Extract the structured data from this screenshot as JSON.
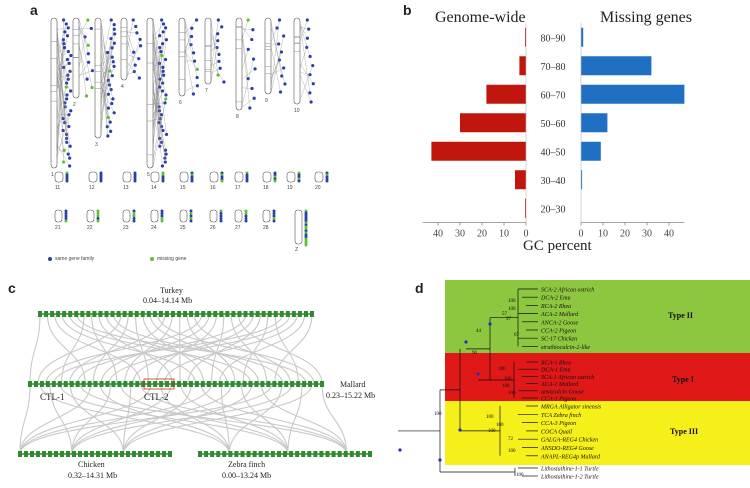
{
  "panel_a": {
    "label": "a",
    "chromosomes_top": [
      "1",
      "2",
      "3",
      "4",
      "5",
      "6",
      "7",
      "8",
      "9",
      "10"
    ],
    "chromosomes_mid": [
      "11",
      "12",
      "13",
      "14",
      "15",
      "16",
      "17",
      "18",
      "19",
      "20"
    ],
    "chromosomes_bot": [
      "21",
      "22",
      "23",
      "24",
      "25",
      "26",
      "27",
      "28",
      "Z"
    ],
    "legend_same": "same gene family",
    "legend_missing": "missing gene",
    "colors": {
      "same": "#2b3fa8",
      "missing": "#5cbf3a"
    }
  },
  "panel_b": {
    "label": "b",
    "left_title": "Genome-wide",
    "right_title": "Missing genes",
    "xlabel": "GC percent",
    "colors": {
      "genome": "#c0160e",
      "missing": "#1f6fc2"
    }
  },
  "chart_data": {
    "type": "bar",
    "categories": [
      "80–90",
      "70–80",
      "60–70",
      "50–60",
      "40–50",
      "30–40",
      "20–30"
    ],
    "series": [
      {
        "name": "Genome-wide",
        "values": [
          0.3,
          3,
          18,
          30,
          43,
          5,
          0.3
        ]
      },
      {
        "name": "Missing genes",
        "values": [
          1,
          32,
          47,
          12,
          9,
          0.5,
          0
        ]
      }
    ],
    "left_ticks": [
      "40",
      "30",
      "20",
      "10",
      "0"
    ],
    "right_ticks": [
      "0",
      "10",
      "20",
      "30",
      "40"
    ],
    "xlim": [
      0,
      47
    ]
  },
  "panel_c": {
    "label": "c",
    "turkey": "Turkey",
    "turkey_range": "0.04–14.14 Mb",
    "mallard": "Mallard",
    "mallard_range": "0.23–15.22 Mb",
    "chicken": "Chicken",
    "chicken_range": "0.32–14.31 Mb",
    "zebra": "Zebra finch",
    "zebra_range": "0.00–13.24 Mb",
    "ctl1": "CTL-1",
    "ctl2": "CTL-2"
  },
  "panel_d": {
    "label": "d",
    "types": [
      "Type II",
      "Type I",
      "Type III"
    ],
    "colors": {
      "type2": "#8dc63f",
      "type1": "#e01818",
      "type3": "#f5f01a"
    },
    "leaves": [
      "SCA-2 African ostrich",
      "DCA-2 Emu",
      "RCA-2 Rhea",
      "ACA-2 Mallard",
      "ANCA-2 Goose",
      "CCA-2 Pigeon",
      "SC-17 Chicken",
      "struthiocalcin-2-like",
      "RCA-1 Rhea",
      "DCA-1 Emu",
      "SCA-1 African ostrich",
      "ACA-1 Mallard",
      "ansocalcin Goose",
      "CCA-1 Pigeon",
      "MRGA Alligator sinensis",
      "TCA Zebra finch",
      "CCA-3 Pigeon",
      "COCA Quail",
      "GALGA-REG4 Chicken",
      "ANSDO-REG4 Goose",
      "ANAPL-REG4p Mallard",
      "Lithostathine-1-1 Turtle",
      "Lithostathine-1-2 Turtle"
    ],
    "bootstrap": [
      "96",
      "57",
      "44",
      "100",
      "100",
      "97",
      "67",
      "100",
      "100",
      "100",
      "100",
      "100",
      "100",
      "100",
      "72",
      "100",
      "100",
      "100"
    ]
  }
}
